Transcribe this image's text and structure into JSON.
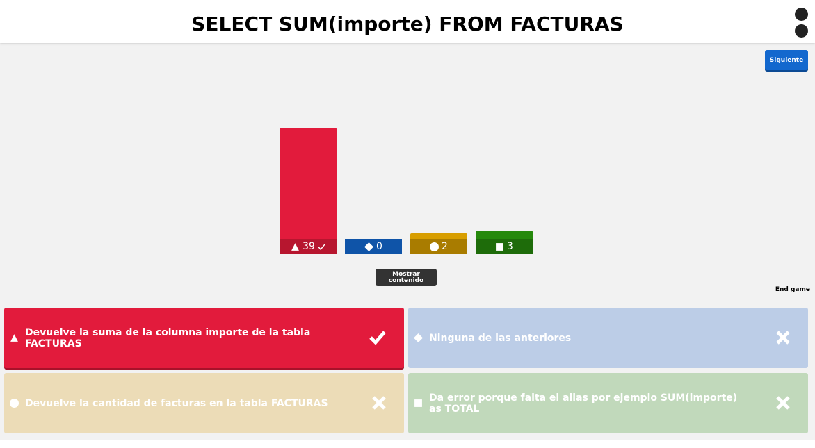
{
  "header": {
    "title": "SELECT SUM(importe) FROM FACTURAS"
  },
  "buttons": {
    "next": "Siguiente",
    "show_content": "Mostrar contenido",
    "end_game": "End game"
  },
  "chart_data": {
    "type": "bar",
    "values": [
      39,
      0,
      2,
      3
    ],
    "colors": [
      "#e21b3c",
      "#1368ce",
      "#d89e00",
      "#26890c"
    ],
    "label_colors": [
      "#b7162f",
      "#0f54a8",
      "#a97c00",
      "#1e6c0a"
    ],
    "correct": [
      true,
      false,
      false,
      false
    ]
  },
  "answers": [
    {
      "text": "Devuelve la suma de la columna importe de la tabla FACTURAS",
      "color": "#e21b3c"
    },
    {
      "text": "Ninguna de las anteriores",
      "color": "#bccde7"
    },
    {
      "text": "Devuelve la cantidad de facturas en la tabla FACTURAS",
      "color": "#ecdcb7"
    },
    {
      "text": "Da error porque falta el alias por ejemplo SUM(importe) as TOTAL",
      "color": "#c1d9bb"
    }
  ]
}
